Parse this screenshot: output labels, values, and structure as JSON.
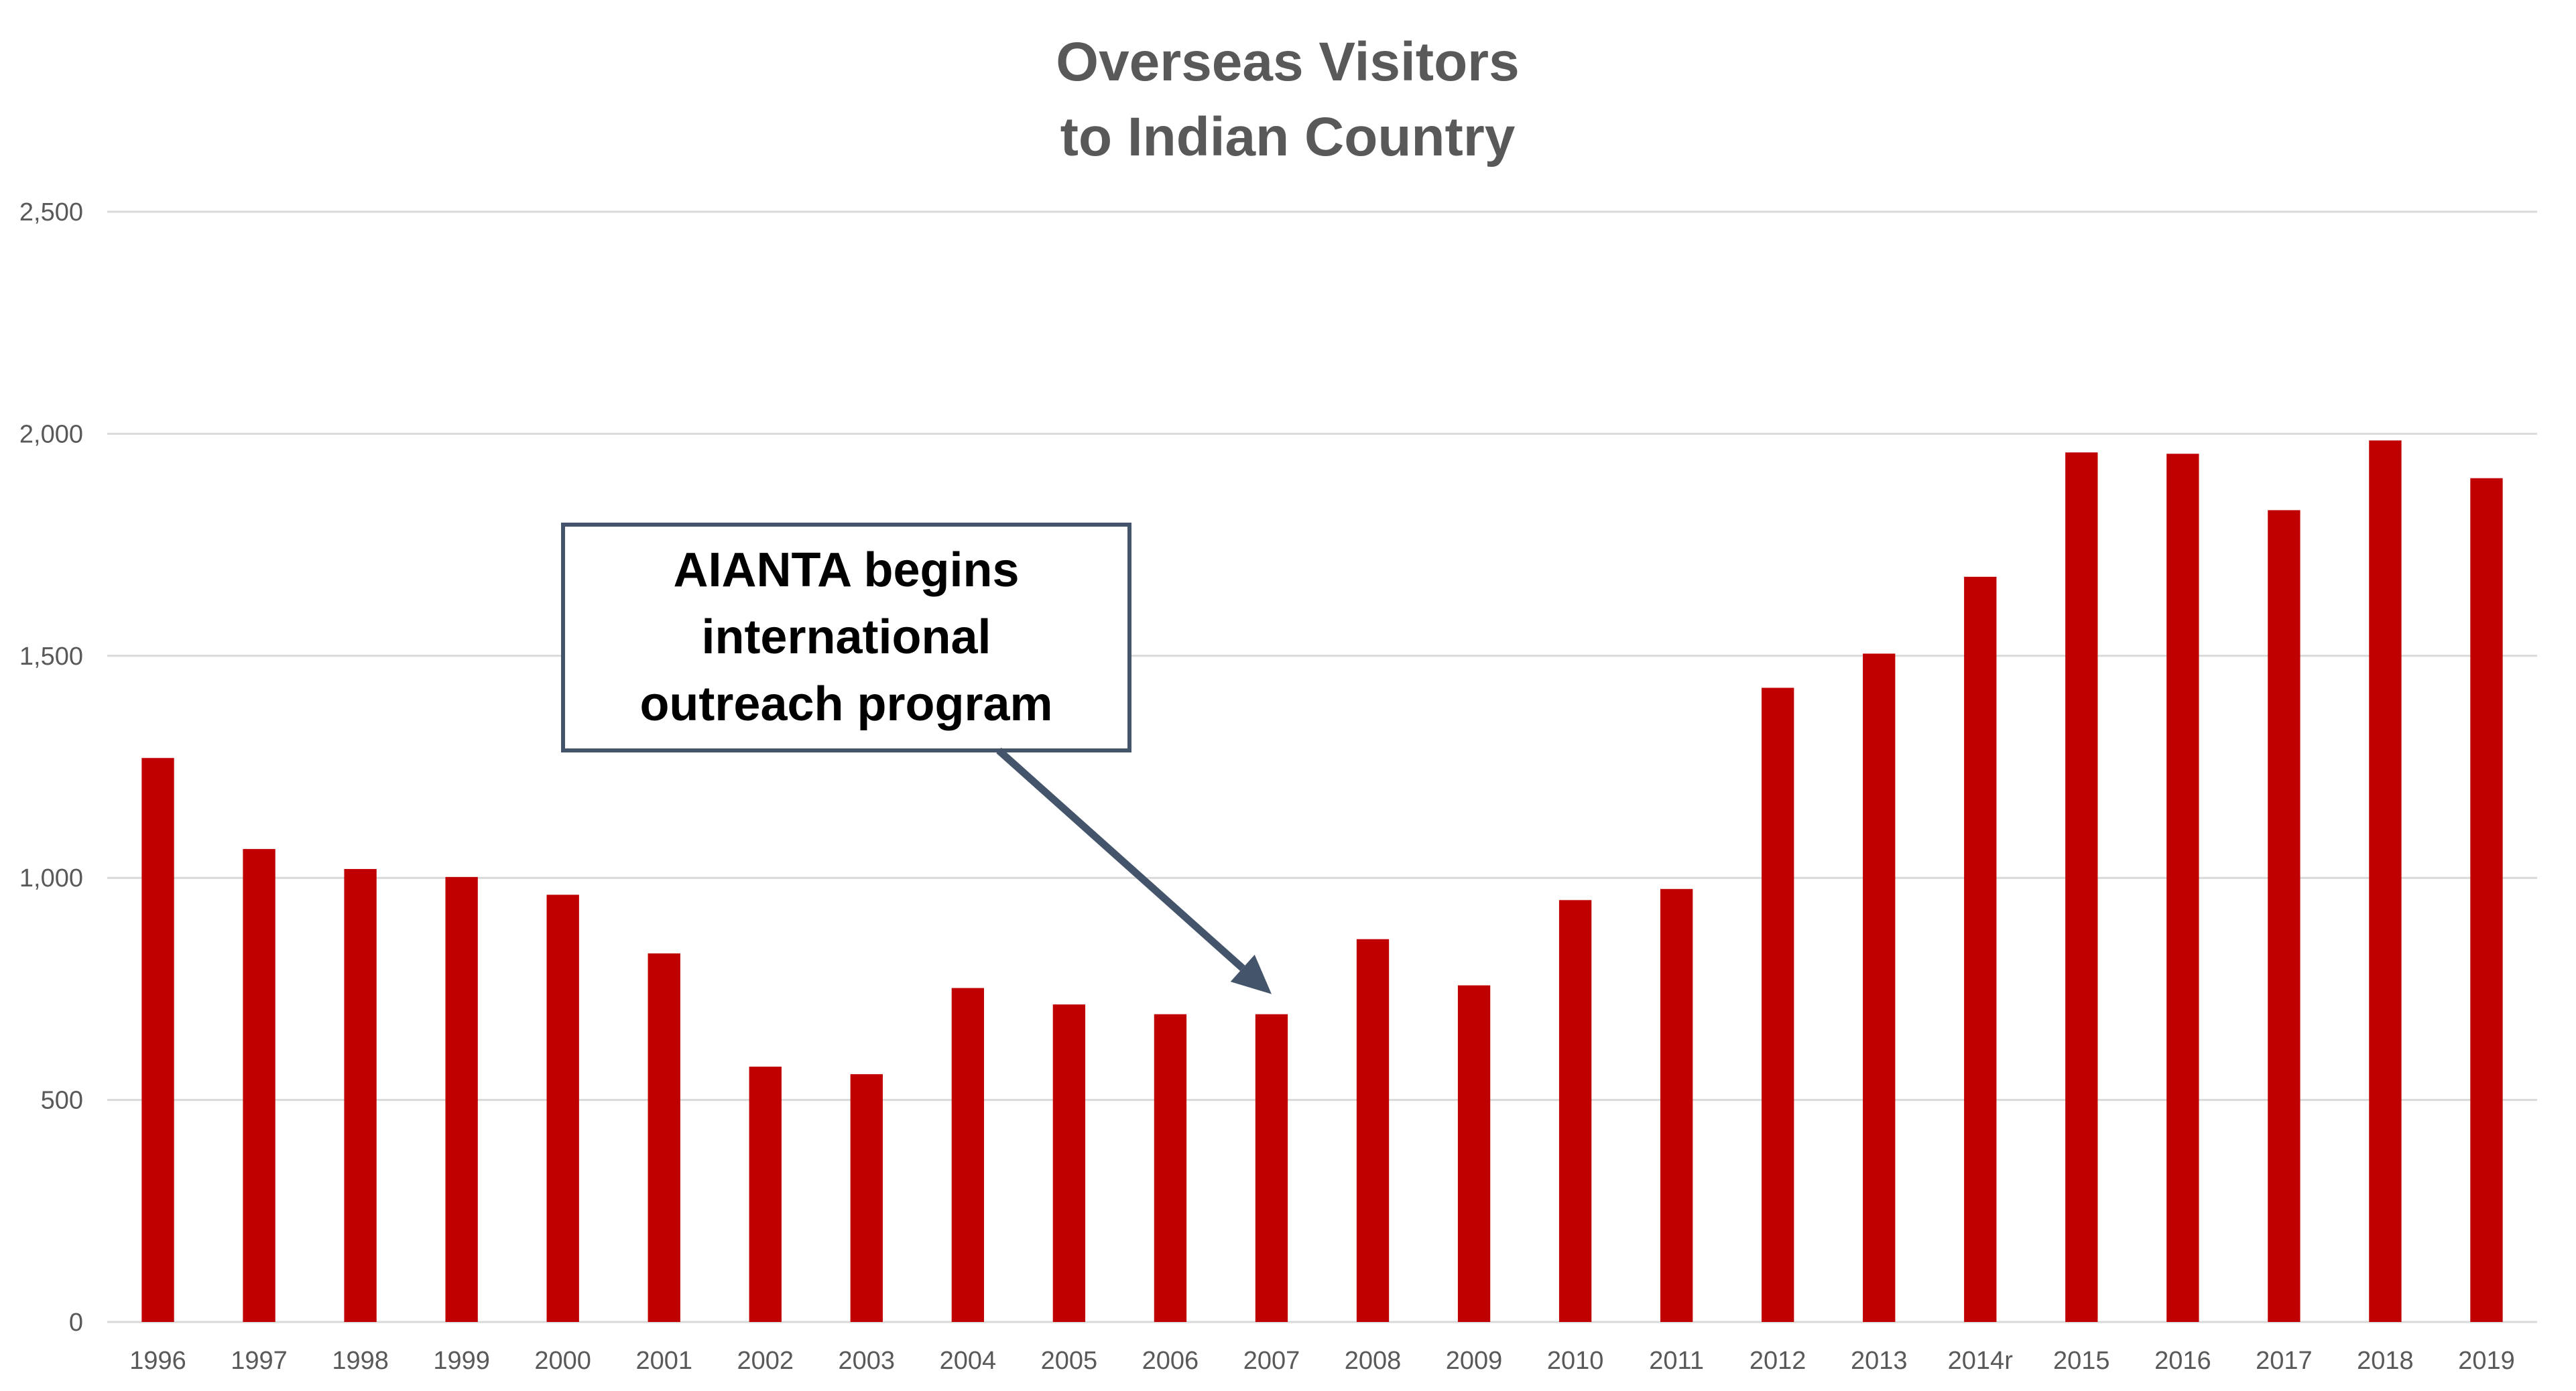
{
  "chart_data": {
    "type": "bar",
    "title_lines": [
      "Overseas Visitors",
      "to Indian Country"
    ],
    "xlabel": "",
    "ylabel": "",
    "ylim": [
      0,
      2500
    ],
    "yticks": [
      0,
      500,
      1000,
      1500,
      2000,
      2500
    ],
    "ytick_labels": [
      "0",
      "500",
      "1,000",
      "1,500",
      "2,000",
      "2,500"
    ],
    "grid": true,
    "legend": "none",
    "bar_color": "#c00000",
    "categories": [
      "1996",
      "1997",
      "1998",
      "1999",
      "2000",
      "2001",
      "2002",
      "2003",
      "2004",
      "2005",
      "2006",
      "2007",
      "2008",
      "2009",
      "2010",
      "2011",
      "2012",
      "2013",
      "2014r",
      "2015",
      "2016",
      "2017",
      "2018",
      "2019"
    ],
    "values": [
      1270,
      1065,
      1020,
      1002,
      962,
      830,
      575,
      558,
      752,
      715,
      693,
      693,
      862,
      758,
      950,
      975,
      1428,
      1505,
      1678,
      1958,
      1955,
      1828,
      1985,
      1900
    ],
    "annotation": {
      "lines": [
        "AIANTA begins",
        "international",
        "outreach program"
      ],
      "points_to": "2007",
      "border_color": "#44546a"
    }
  }
}
